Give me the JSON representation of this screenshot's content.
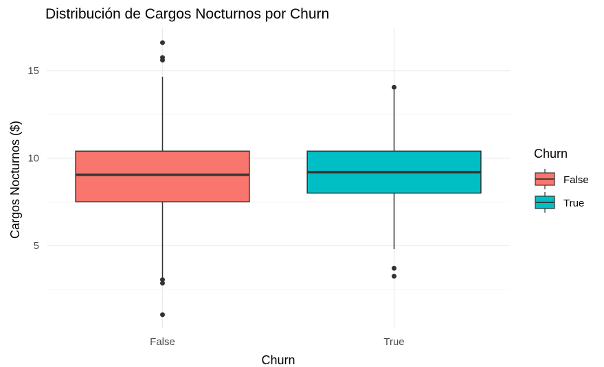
{
  "chart_data": {
    "type": "boxplot",
    "title": "Distribución de Cargos Nocturnos por Churn",
    "xlabel": "Churn",
    "ylabel": "Cargos Nocturnos ($)",
    "categories": [
      "False",
      "True"
    ],
    "ylim": [
      0,
      17.2
    ],
    "y_ticks": [
      5,
      10,
      15
    ],
    "grid": true,
    "legend": {
      "title": "Churn",
      "position": "right",
      "entries": [
        "False",
        "True"
      ]
    },
    "colors": [
      "#F8766D",
      "#00BFC4"
    ],
    "series": [
      {
        "name": "False",
        "whisker_low": 3.1,
        "q1": 7.5,
        "median": 9.05,
        "q3": 10.4,
        "whisker_high": 14.65,
        "outliers": [
          16.6,
          15.75,
          15.6,
          3.05,
          2.85,
          1.05
        ]
      },
      {
        "name": "True",
        "whisker_low": 4.8,
        "q1": 8.0,
        "median": 9.2,
        "q3": 10.4,
        "whisker_high": 13.9,
        "outliers": [
          14.05,
          3.7,
          3.25
        ]
      }
    ]
  }
}
